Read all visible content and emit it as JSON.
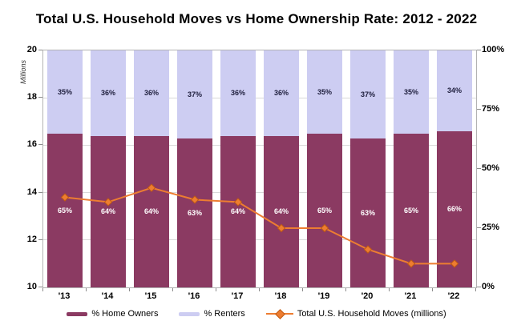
{
  "title": "Total U.S. Household Moves vs Home Ownership Rate: 2012 - 2022",
  "chart_data": {
    "type": "combo: 100%-stacked-bar + line",
    "categories": [
      "'13",
      "'14",
      "'15",
      "'16",
      "'17",
      "'18",
      "'19",
      "'20",
      "'21",
      "'22"
    ],
    "series": [
      {
        "name": "% Home Owners",
        "type": "bar",
        "unit": "%",
        "color": "#8b3a62",
        "label_color": "#ffffff",
        "values": [
          65,
          64,
          64,
          63,
          64,
          64,
          65,
          63,
          65,
          66
        ]
      },
      {
        "name": "% Renters",
        "type": "bar",
        "unit": "%",
        "color": "#cdcdf2",
        "label_color": "#20203f",
        "values": [
          35,
          36,
          36,
          37,
          36,
          36,
          35,
          37,
          35,
          34
        ]
      },
      {
        "name": "Total U.S. Household Moves (millions)",
        "type": "line",
        "marker": "diamond",
        "color": "#ed7d31",
        "marker_stroke": "#c05a12",
        "values": [
          13.8,
          13.6,
          14.2,
          13.7,
          13.6,
          12.5,
          12.5,
          11.6,
          11.0,
          11.0
        ]
      }
    ],
    "left_axis": {
      "label": "Millions",
      "min": 10,
      "max": 20,
      "ticks": [
        10,
        12,
        14,
        16,
        18,
        20
      ]
    },
    "right_axis": {
      "ticks": [
        "0%",
        "25%",
        "50%",
        "75%",
        "100%"
      ]
    },
    "legend_position": "bottom",
    "grid": true,
    "colors": {
      "gridline": "#d9d9d9",
      "border": "#b3b3b3",
      "text": "#000000"
    }
  }
}
